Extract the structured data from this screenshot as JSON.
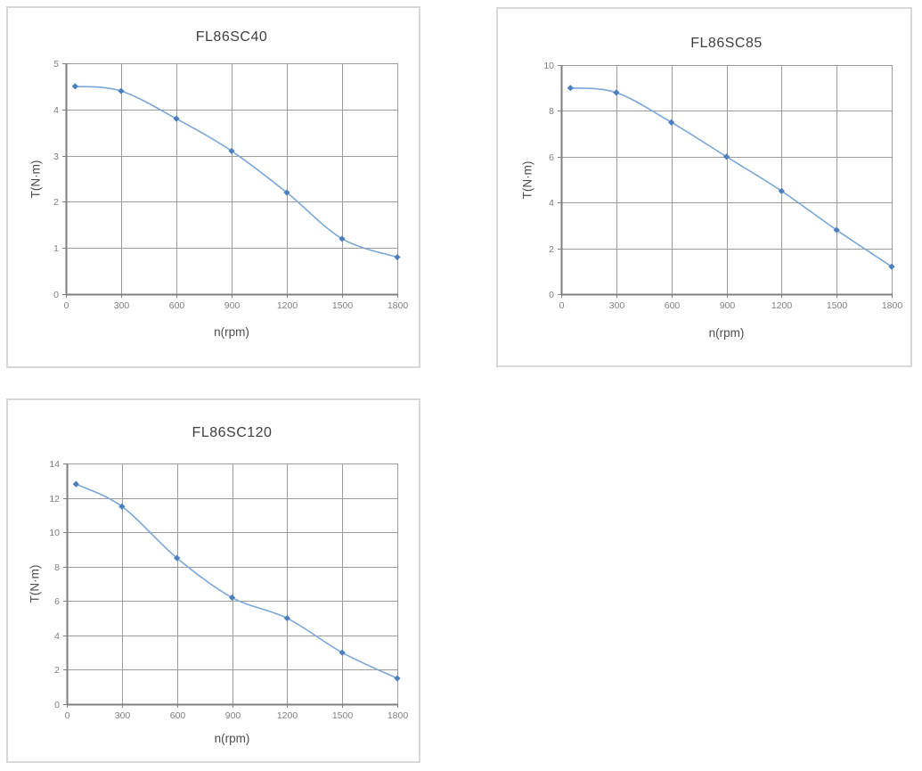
{
  "style": {
    "line_color": "#7aa7d9",
    "marker_color": "#4b7fbe",
    "grid_color": "#9c9c9c",
    "axis_color": "#7f7f7f",
    "tick_label_color": "#7f7f7f",
    "axis_title_color": "#4d4d4d",
    "chart_title_color": "#3f3f3f",
    "panel_border_color": "#d7d7d7"
  },
  "chart_data": [
    {
      "type": "line",
      "title": "FL86SC40",
      "xlabel": "n(rpm)",
      "ylabel": "T(N·m)",
      "x": [
        50,
        300,
        600,
        900,
        1200,
        1500,
        1800
      ],
      "y": [
        4.5,
        4.4,
        3.8,
        3.1,
        2.2,
        1.2,
        0.8
      ],
      "xlim": [
        0,
        1800
      ],
      "ylim": [
        0,
        5
      ],
      "xticks": [
        0,
        300,
        600,
        900,
        1200,
        1500,
        1800
      ],
      "yticks": [
        0,
        1,
        2,
        3,
        4,
        5
      ],
      "grid": true,
      "legend": false,
      "marker": "diamond"
    },
    {
      "type": "line",
      "title": "FL86SC85",
      "xlabel": "n(rpm)",
      "ylabel": "T(N·m)",
      "x": [
        50,
        300,
        600,
        900,
        1200,
        1500,
        1800
      ],
      "y": [
        9.0,
        8.8,
        7.5,
        6.0,
        4.5,
        2.8,
        1.2
      ],
      "xlim": [
        0,
        1800
      ],
      "ylim": [
        0,
        10
      ],
      "xticks": [
        0,
        300,
        600,
        900,
        1200,
        1500,
        1800
      ],
      "yticks": [
        0,
        2,
        4,
        6,
        8,
        10
      ],
      "grid": true,
      "legend": false,
      "marker": "diamond"
    },
    {
      "type": "line",
      "title": "FL86SC120",
      "xlabel": "n(rpm)",
      "ylabel": "T(N·m)",
      "x": [
        50,
        300,
        600,
        900,
        1200,
        1500,
        1800
      ],
      "y": [
        12.8,
        11.5,
        8.5,
        6.2,
        5.0,
        3.0,
        1.5
      ],
      "xlim": [
        0,
        1800
      ],
      "ylim": [
        0,
        14
      ],
      "xticks": [
        0,
        300,
        600,
        900,
        1200,
        1500,
        1800
      ],
      "yticks": [
        0,
        2,
        4,
        6,
        8,
        10,
        12,
        14
      ],
      "grid": true,
      "legend": false,
      "marker": "diamond"
    }
  ]
}
